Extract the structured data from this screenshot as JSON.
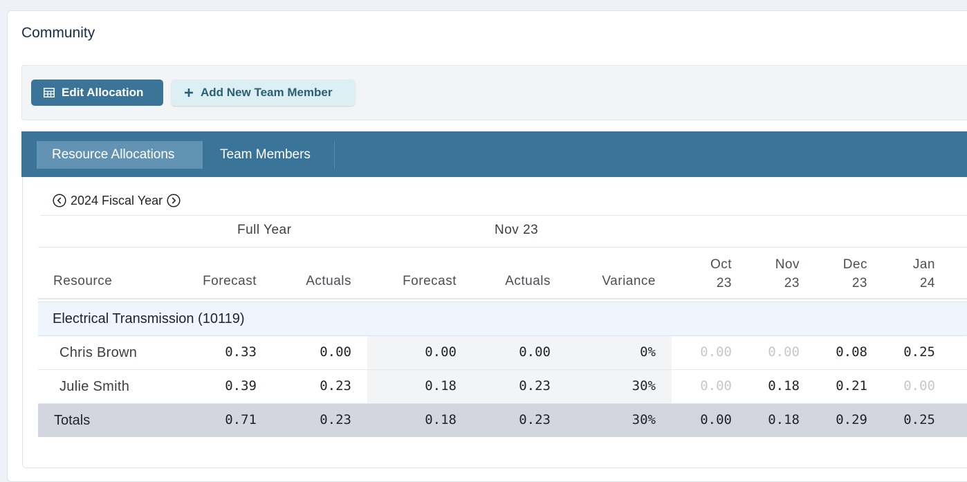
{
  "page": {
    "title": "Community"
  },
  "toolbar": {
    "edit_label": "Edit Allocation",
    "edit_icon": "table-icon",
    "add_label": "Add New Team Member",
    "add_icon": "plus-icon"
  },
  "tabs": [
    {
      "label": "Resource Allocations",
      "active": true
    },
    {
      "label": "Team Members",
      "active": false
    }
  ],
  "fiscal": {
    "label": "2024 Fiscal Year",
    "prev_icon": "chevron-left-circle-icon",
    "next_icon": "chevron-right-circle-icon"
  },
  "table": {
    "group_headers": {
      "full_year": "Full Year",
      "month": "Nov 23"
    },
    "columns": {
      "resource": "Resource",
      "fy_forecast": "Forecast",
      "fy_actuals": "Actuals",
      "m_forecast": "Forecast",
      "m_actuals": "Actuals",
      "variance": "Variance",
      "oct_1": "Oct",
      "oct_2": "23",
      "nov_1": "Nov",
      "nov_2": "23",
      "dec_1": "Dec",
      "dec_2": "23",
      "jan_1": "Jan",
      "jan_2": "24"
    },
    "section": "Electrical Transmission (10119)",
    "rows": [
      {
        "name": "Chris Brown",
        "fy_forecast": "0.33",
        "fy_actuals": "0.00",
        "m_forecast": "0.00",
        "m_actuals": "0.00",
        "variance": "0%",
        "oct": "0.00",
        "nov": "0.00",
        "dec": "0.08",
        "jan": "0.25"
      },
      {
        "name": "Julie Smith",
        "fy_forecast": "0.39",
        "fy_actuals": "0.23",
        "m_forecast": "0.18",
        "m_actuals": "0.23",
        "variance": "30%",
        "oct": "0.00",
        "nov": "0.18",
        "dec": "0.21",
        "jan": "0.00"
      }
    ],
    "totals": {
      "label": "Totals",
      "fy_forecast": "0.71",
      "fy_actuals": "0.23",
      "m_forecast": "0.18",
      "m_actuals": "0.23",
      "variance": "30%",
      "oct": "0.00",
      "nov": "0.18",
      "dec": "0.29",
      "jan": "0.25"
    }
  },
  "colors": {
    "accent": "#3a7599",
    "tab_active": "#6393b2",
    "add_button_bg": "#dcf0f4",
    "section_bg": "#eef5fc",
    "totals_bg": "#d3d6de",
    "muted_value": "#c4c8cd"
  }
}
